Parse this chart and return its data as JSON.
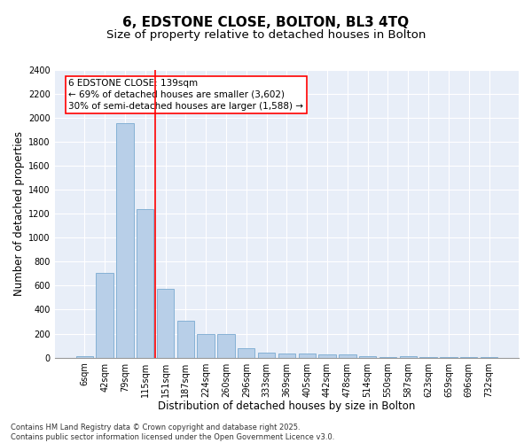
{
  "title": "6, EDSTONE CLOSE, BOLTON, BL3 4TQ",
  "subtitle": "Size of property relative to detached houses in Bolton",
  "xlabel": "Distribution of detached houses by size in Bolton",
  "ylabel": "Number of detached properties",
  "bar_color": "#b8cfe8",
  "bar_edge_color": "#7aaad0",
  "background_color": "#e8eef8",
  "grid_color": "#ffffff",
  "categories": [
    "6sqm",
    "42sqm",
    "79sqm",
    "115sqm",
    "151sqm",
    "187sqm",
    "224sqm",
    "260sqm",
    "296sqm",
    "333sqm",
    "369sqm",
    "405sqm",
    "442sqm",
    "478sqm",
    "514sqm",
    "550sqm",
    "587sqm",
    "623sqm",
    "659sqm",
    "696sqm",
    "732sqm"
  ],
  "values": [
    15,
    710,
    1960,
    1240,
    575,
    305,
    200,
    195,
    80,
    45,
    35,
    35,
    30,
    30,
    15,
    5,
    15,
    5,
    5,
    2,
    2
  ],
  "ylim": [
    0,
    2400
  ],
  "yticks": [
    0,
    200,
    400,
    600,
    800,
    1000,
    1200,
    1400,
    1600,
    1800,
    2000,
    2200,
    2400
  ],
  "red_line_x": 3.5,
  "annotation_line1": "6 EDSTONE CLOSE: 139sqm",
  "annotation_line2": "← 69% of detached houses are smaller (3,602)",
  "annotation_line3": "30% of semi-detached houses are larger (1,588) →",
  "footer": "Contains HM Land Registry data © Crown copyright and database right 2025.\nContains public sector information licensed under the Open Government Licence v3.0.",
  "title_fontsize": 11,
  "subtitle_fontsize": 9.5,
  "xlabel_fontsize": 8.5,
  "ylabel_fontsize": 8.5,
  "tick_fontsize": 7,
  "annotation_fontsize": 7.5,
  "footer_fontsize": 6
}
